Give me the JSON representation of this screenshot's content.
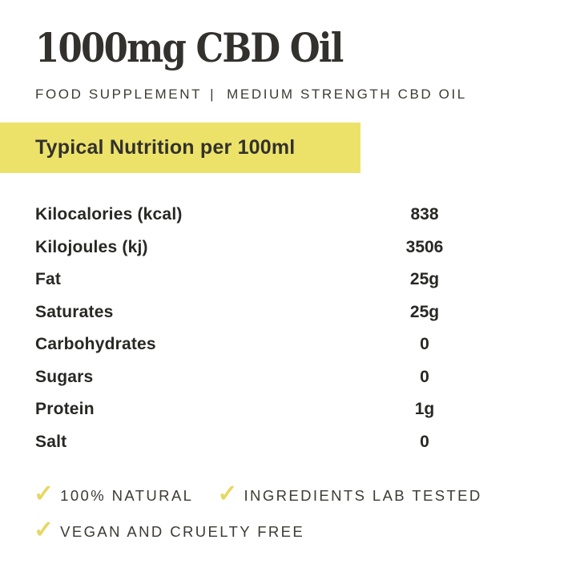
{
  "product": {
    "title": "1000mg CBD Oil",
    "subtitle_left": "FOOD SUPPLEMENT",
    "subtitle_divider": "|",
    "subtitle_right": "MEDIUM STRENGTH CBD OIL"
  },
  "nutrition": {
    "header": "Typical Nutrition per 100ml",
    "rows": [
      {
        "label": "Kilocalories (kcal)",
        "value": "838"
      },
      {
        "label": "Kilojoules (kj)",
        "value": "3506"
      },
      {
        "label": "Fat",
        "value": "25g"
      },
      {
        "label": "Saturates",
        "value": "25g"
      },
      {
        "label": "Carbohydrates",
        "value": "0"
      },
      {
        "label": "Sugars",
        "value": "0"
      },
      {
        "label": "Protein",
        "value": "1g"
      },
      {
        "label": "Salt",
        "value": "0"
      }
    ]
  },
  "features": [
    {
      "icon": "check-icon",
      "glyph": "✓",
      "label": "100% NATURAL"
    },
    {
      "icon": "check-icon",
      "glyph": "✓",
      "label": "INGREDIENTS LAB TESTED"
    },
    {
      "icon": "check-icon",
      "glyph": "✓",
      "label": "VEGAN AND CRUELTY FREE"
    }
  ],
  "colors": {
    "highlight_yellow": "#ece269",
    "check_yellow": "#e6d75f",
    "text_dark": "#32312d"
  }
}
